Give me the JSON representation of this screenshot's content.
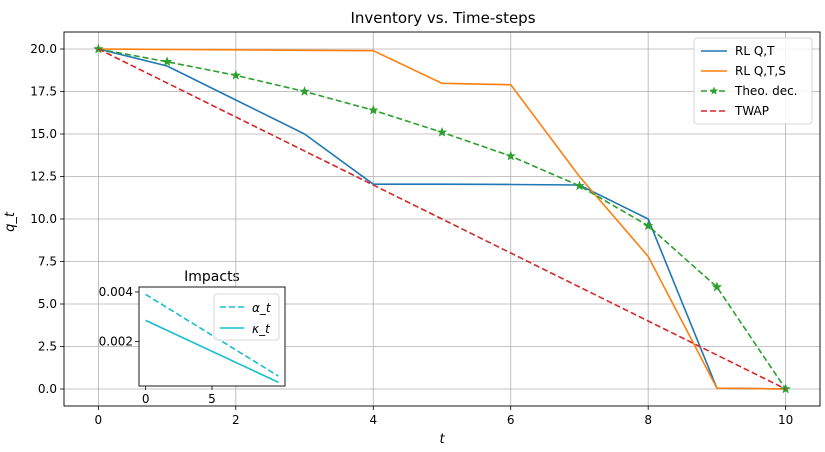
{
  "chart_data": [
    {
      "type": "line",
      "title": "Inventory vs. Time-steps",
      "xlabel": "t",
      "ylabel": "q_t",
      "xlim": [
        -0.5,
        10.5
      ],
      "ylim": [
        -1.0,
        21.0
      ],
      "xticks": [
        0,
        2,
        4,
        6,
        8,
        10
      ],
      "yticks": [
        0.0,
        2.5,
        5.0,
        7.5,
        10.0,
        12.5,
        15.0,
        17.5,
        20.0
      ],
      "ytick_labels": [
        "0.0",
        "2.5",
        "5.0",
        "7.5",
        "10.0",
        "12.5",
        "15.0",
        "17.5",
        "20.0"
      ],
      "grid": true,
      "legend_position": "top-right",
      "series": [
        {
          "name": "RL Q,T",
          "color": "#1f77b4",
          "style": "solid",
          "marker": "none",
          "x": [
            0,
            1,
            2,
            3,
            4,
            5,
            6,
            7,
            8,
            9,
            10
          ],
          "y": [
            20.0,
            19.0,
            17.0,
            15.0,
            12.05,
            12.05,
            12.03,
            12.0,
            10.0,
            0.05,
            0.0
          ]
        },
        {
          "name": "RL Q,T,S",
          "color": "#ff7f0e",
          "style": "solid",
          "marker": "none",
          "x": [
            0,
            1,
            2,
            3,
            4,
            5,
            6,
            7,
            8,
            9,
            10
          ],
          "y": [
            20.0,
            19.97,
            19.95,
            19.92,
            19.9,
            17.98,
            17.9,
            12.5,
            7.8,
            0.05,
            0.0
          ]
        },
        {
          "name": "Theo. dec.",
          "color": "#2ca02c",
          "style": "dashed",
          "marker": "star",
          "x": [
            0,
            1,
            2,
            3,
            4,
            5,
            6,
            7,
            8,
            9,
            10
          ],
          "y": [
            20.0,
            19.25,
            18.45,
            17.5,
            16.4,
            15.1,
            13.7,
            11.95,
            9.6,
            6.0,
            0.0
          ]
        },
        {
          "name": "TWAP",
          "color": "#d62728",
          "style": "dashed",
          "marker": "none",
          "x": [
            0,
            10
          ],
          "y": [
            20.0,
            0.0
          ]
        }
      ]
    },
    {
      "type": "line",
      "title": "Impacts",
      "xlim": [
        -0.5,
        10.5
      ],
      "ylim": [
        0.0002,
        0.0042
      ],
      "xticks": [
        0,
        5
      ],
      "yticks": [
        0.002,
        0.004
      ],
      "ytick_labels": [
        "0.002",
        "0.004"
      ],
      "legend_position": "top-right",
      "series": [
        {
          "name": "α_t",
          "color": "#17becf",
          "style": "dashed",
          "x": [
            0,
            10
          ],
          "y": [
            0.0039,
            0.0006
          ]
        },
        {
          "name": "κ_t",
          "color": "#17becf",
          "style": "solid",
          "x": [
            0,
            10
          ],
          "y": [
            0.00285,
            0.00035
          ]
        }
      ]
    }
  ]
}
